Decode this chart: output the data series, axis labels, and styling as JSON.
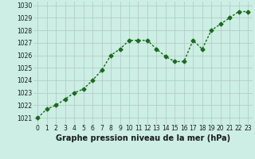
{
  "x": [
    0,
    1,
    2,
    3,
    4,
    5,
    6,
    7,
    8,
    9,
    10,
    11,
    12,
    13,
    14,
    15,
    16,
    17,
    18,
    19,
    20,
    21,
    22,
    23
  ],
  "y": [
    1021.0,
    1021.7,
    1022.0,
    1022.5,
    1023.0,
    1023.3,
    1024.0,
    1024.8,
    1026.0,
    1026.5,
    1027.2,
    1027.2,
    1027.2,
    1026.5,
    1025.9,
    1025.5,
    1025.5,
    1027.2,
    1026.5,
    1028.0,
    1028.5,
    1029.0,
    1029.5,
    1029.5
  ],
  "line_color": "#1a6b1a",
  "marker": "D",
  "marker_size": 2.5,
  "line_width": 1.0,
  "background_color": "#cceee4",
  "grid_color": "#b0c8c0",
  "xlabel": "Graphe pression niveau de la mer (hPa)",
  "xlabel_fontsize": 7,
  "xlabel_color": "#1a1a1a",
  "ylabel_ticks": [
    1021,
    1022,
    1023,
    1024,
    1025,
    1026,
    1027,
    1028,
    1029,
    1030
  ],
  "ylim": [
    1020.5,
    1030.3
  ],
  "xlim": [
    -0.5,
    23.5
  ],
  "tick_fontsize": 5.5,
  "tick_color": "#1a1a1a"
}
